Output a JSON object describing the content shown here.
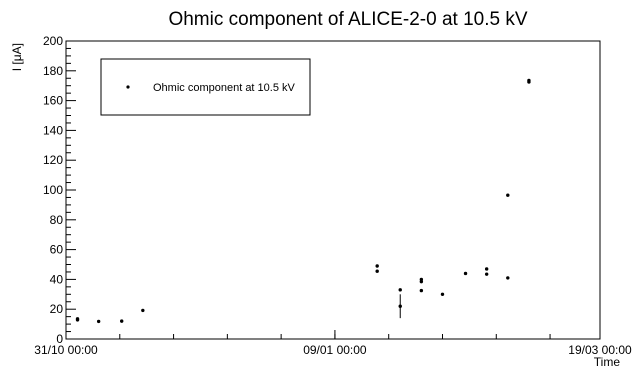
{
  "chart_data": {
    "type": "scatter",
    "title": "Ohmic component of ALICE-2-0 at 10.5 kV",
    "xlabel": "Time",
    "ylabel": "I [μA]",
    "xlim": [
      "2009-10-31 00:00",
      "2010-03-19 00:00"
    ],
    "ylim": [
      0,
      200
    ],
    "y_ticks": [
      0,
      20,
      40,
      60,
      80,
      100,
      120,
      140,
      160,
      180,
      200
    ],
    "x_tick_labels": [
      "31/10 00:00",
      "09/01 00:00",
      "19/03 00:00"
    ],
    "legend": {
      "placement": "top-left",
      "entry": "Ohmic component at 10.5 kV"
    },
    "series": [
      {
        "name": "Ohmic component at 10.5 kV",
        "points": [
          {
            "x": "2009-11-03 00:00",
            "y": 13.5
          },
          {
            "x": "2009-11-03 00:00",
            "y": 12.8
          },
          {
            "x": "2009-11-08 12:00",
            "y": 11.8
          },
          {
            "x": "2009-11-14 12:00",
            "y": 12.0
          },
          {
            "x": "2009-11-20 00:00",
            "y": 19.2
          },
          {
            "x": "2010-01-20 00:00",
            "y": 49.0
          },
          {
            "x": "2010-01-20 00:00",
            "y": 45.5
          },
          {
            "x": "2010-01-26 00:00",
            "y": 33.0
          },
          {
            "x": "2010-01-26 00:00",
            "y": 22.0,
            "err": 8.0
          },
          {
            "x": "2010-01-31 12:00",
            "y": 40.0
          },
          {
            "x": "2010-01-31 12:00",
            "y": 38.5
          },
          {
            "x": "2010-01-31 12:00",
            "y": 32.5
          },
          {
            "x": "2010-02-06 00:00",
            "y": 30.0
          },
          {
            "x": "2010-02-12 00:00",
            "y": 44.0
          },
          {
            "x": "2010-02-17 12:00",
            "y": 47.0
          },
          {
            "x": "2010-02-17 12:00",
            "y": 43.5
          },
          {
            "x": "2010-02-23 00:00",
            "y": 96.5
          },
          {
            "x": "2010-02-23 00:00",
            "y": 41.0
          },
          {
            "x": "2010-02-28 12:00",
            "y": 172.5
          },
          {
            "x": "2010-02-28 12:00",
            "y": 173.5
          }
        ]
      }
    ]
  }
}
